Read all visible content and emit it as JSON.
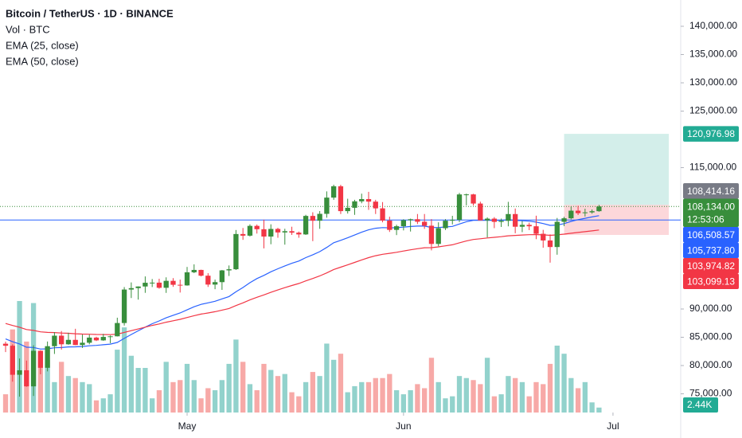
{
  "chart_data": {
    "type": "candlestick",
    "title": "Bitcoin / TetherUS · 1D · BINANCE",
    "up_color": "#388e3c",
    "down_color": "#f23645",
    "open": [
      83860,
      83500,
      78370,
      79160,
      76320,
      82610,
      79600,
      83420,
      85280,
      83760,
      84540,
      83630,
      84030,
      84940,
      84450,
      85060,
      85170,
      87520,
      93440,
      93690,
      93980,
      94640,
      94660,
      93750,
      94980,
      94280,
      94170,
      96490,
      96910,
      95890,
      94320,
      94750,
      96830,
      97030,
      103260,
      102970,
      104700,
      104110,
      102810,
      104160,
      103540,
      103760,
      103500,
      103190,
      106460,
      105610,
      106830,
      109700,
      111710,
      107310,
      107900,
      109040,
      109440,
      108990,
      107800,
      105640,
      103990,
      104640,
      105700,
      105880,
      105430,
      104730,
      101510,
      104290,
      105620,
      105770,
      110260,
      110270,
      108650,
      105670,
      105980,
      105410,
      105590,
      106790,
      104550,
      104880,
      104630,
      103300,
      102120,
      100960,
      105420,
      106040,
      107390,
      106950,
      107090,
      107300
    ],
    "high": [
      84230,
      83750,
      81250,
      80870,
      83590,
      82700,
      84250,
      85900,
      86100,
      85800,
      86500,
      85480,
      85470,
      85100,
      85600,
      85320,
      88460,
      93880,
      94700,
      94000,
      95760,
      95300,
      95350,
      95600,
      95460,
      95200,
      97440,
      97900,
      96950,
      96330,
      95200,
      96900,
      97700,
      103970,
      104330,
      104970,
      104940,
      105800,
      104980,
      104360,
      104190,
      104550,
      103700,
      106660,
      107110,
      107320,
      110800,
      111980,
      111960,
      109500,
      109310,
      110400,
      110720,
      109310,
      108910,
      106320,
      104900,
      105880,
      105980,
      106800,
      106800,
      105900,
      105330,
      105900,
      106480,
      110530,
      110400,
      110370,
      108980,
      106200,
      106250,
      105990,
      108950,
      107770,
      105570,
      105260,
      106500,
      104000,
      103200,
      106100,
      106300,
      108130,
      108250,
      107740,
      107600,
      108414
    ],
    "low": [
      82380,
      77150,
      74500,
      76240,
      74620,
      78460,
      78970,
      82050,
      82820,
      83680,
      83600,
      83110,
      83760,
      84330,
      84380,
      83950,
      85140,
      87070,
      91940,
      91660,
      92860,
      93880,
      93590,
      92850,
      93920,
      92910,
      94120,
      96340,
      95760,
      93900,
      93500,
      93380,
      95840,
      96900,
      102230,
      102820,
      103340,
      100720,
      101450,
      102600,
      101380,
      103100,
      102600,
      103100,
      102000,
      104180,
      106150,
      109310,
      106800,
      106880,
      106650,
      108700,
      107530,
      106800,
      105330,
      103630,
      103070,
      103900,
      103700,
      105030,
      104170,
      100370,
      101100,
      103970,
      104960,
      105360,
      108330,
      108300,
      105670,
      102660,
      104300,
      104510,
      104620,
      103400,
      103590,
      103950,
      102350,
      100840,
      98200,
      99600,
      104650,
      105850,
      106620,
      106350,
      106860,
      107200
    ],
    "close": [
      83500,
      78370,
      79160,
      76320,
      82610,
      79600,
      83420,
      85280,
      83760,
      84540,
      83630,
      84030,
      84940,
      84450,
      85060,
      85170,
      87520,
      93440,
      93690,
      93980,
      94640,
      94660,
      93750,
      94980,
      94280,
      94170,
      96490,
      96910,
      95890,
      94320,
      94750,
      96830,
      97030,
      103260,
      102970,
      104700,
      104110,
      102810,
      104160,
      103540,
      103760,
      103500,
      103190,
      106460,
      105610,
      106830,
      109700,
      111710,
      107310,
      107900,
      109040,
      109440,
      108990,
      107800,
      105640,
      103990,
      104640,
      105700,
      105880,
      105430,
      104730,
      101510,
      104290,
      105620,
      105770,
      110260,
      110270,
      108650,
      105670,
      105980,
      105410,
      105590,
      106790,
      104550,
      104880,
      104630,
      103300,
      102120,
      100960,
      105420,
      106040,
      107390,
      106950,
      107090,
      107300,
      108134
    ],
    "volume": {
      "name": "Vol · BTC",
      "up_color": "#92d2cc",
      "down_color": "#f7a9a7",
      "vlim": [
        0,
        55
      ],
      "values": [
        9,
        41,
        55,
        35,
        54,
        30,
        26,
        15,
        25,
        18,
        17,
        15,
        14,
        6,
        7,
        9,
        31,
        42,
        28,
        22,
        22,
        7,
        11,
        25,
        15,
        16,
        24,
        16,
        7,
        12,
        11,
        16,
        24,
        36,
        25,
        14,
        11,
        24,
        21,
        18,
        19,
        10,
        8,
        15,
        20,
        18,
        34,
        26,
        29,
        10,
        13,
        15,
        15,
        17,
        17,
        19,
        11,
        9,
        11,
        14,
        12,
        27,
        15,
        7,
        8,
        18,
        17,
        16,
        14,
        27,
        8,
        9,
        18,
        17,
        15,
        8,
        15,
        14,
        24,
        33,
        29,
        17,
        12,
        15,
        5,
        2.44
      ],
      "current": {
        "value": 2.44,
        "label": "2.44K",
        "color": "#22ab94"
      }
    },
    "lines": [
      {
        "name": "EMA (25, close)",
        "color": "#2962ff",
        "values": [
          84700,
          84213,
          83824,
          83246,
          83197,
          82920,
          82958,
          83137,
          83185,
          83289,
          83315,
          83370,
          83491,
          83565,
          83680,
          83795,
          84082,
          84803,
          85487,
          86141,
          86795,
          87401,
          87890,
          88436,
          88886,
          89293,
          89847,
          90391,
          90814,
          91084,
          91366,
          91787,
          92191,
          93043,
          93807,
          94646,
          95375,
          95947,
          96579,
          97115,
          97627,
          98079,
          98473,
          99088,
          99590,
          100147,
          100883,
          101717,
          102148,
          102591,
          103088,
          103577,
          103994,
          104287,
          104391,
          104360,
          104382,
          104483,
          104591,
          104656,
          104662,
          104419,
          104409,
          104502,
          104600,
          105036,
          105439,
          105686,
          105685,
          105708,
          105685,
          105678,
          105764,
          105671,
          105610,
          105535,
          105363,
          105113,
          104793,
          104841,
          105100,
          105500,
          105800,
          106050,
          106280,
          106508.57
        ],
        "last_label": {
          "value": 106508.57,
          "label": "106,508.57"
        }
      },
      {
        "name": "EMA (50, close)",
        "color": "#f23645",
        "values": [
          87439,
          87083,
          86772,
          86362,
          86215,
          85956,
          85857,
          85834,
          85753,
          85705,
          85624,
          85562,
          85538,
          85495,
          85478,
          85466,
          85547,
          85856,
          86163,
          86469,
          86789,
          87098,
          87359,
          87658,
          87918,
          88163,
          88489,
          88819,
          89096,
          89301,
          89515,
          89802,
          90085,
          90601,
          91086,
          91601,
          92072,
          92493,
          92950,
          93365,
          93772,
          94153,
          94507,
          94976,
          95393,
          95841,
          96384,
          96985,
          97390,
          97802,
          98243,
          98682,
          99086,
          99428,
          99672,
          99841,
          100029,
          100251,
          100472,
          100666,
          100825,
          100852,
          100987,
          101169,
          101349,
          101698,
          102034,
          102293,
          102425,
          102564,
          102676,
          102790,
          102947,
          103010,
          103083,
          103144,
          103150,
          103110,
          103026,
          103120,
          103234,
          103397,
          103536,
          103675,
          103817,
          103974.82
        ],
        "last_label": {
          "value": 103974.82,
          "label": "103,974.82"
        }
      }
    ],
    "last_price": {
      "value": 108134,
      "label": "108,134.00",
      "countdown": "12:53:06",
      "color": "#388e3c"
    },
    "horizontal_line": {
      "value": 105737.8,
      "label": "105,737.80",
      "color": "#2962ff"
    },
    "position": {
      "start": 80,
      "end": 95,
      "target": {
        "value": 120976.98,
        "label": "120,976.98",
        "color": "#22ab94"
      },
      "entry": {
        "value": 108414.16,
        "label": "108,414.16",
        "color": "#787b86"
      },
      "stop": {
        "value": 103099.13,
        "label": "103,099.13",
        "color": "#f23645"
      }
    },
    "xlim": [
      -0.8,
      96.7
    ],
    "xticks": [
      {
        "value": 26,
        "label": "May"
      },
      {
        "value": 57,
        "label": "Jun"
      },
      {
        "value": 87,
        "label": "Jul"
      }
    ],
    "ylim": [
      71690,
      144650
    ],
    "yticks": [
      {
        "value": 140000,
        "label": "140,000.00"
      },
      {
        "value": 135000,
        "label": "135,000.00"
      },
      {
        "value": 130000,
        "label": "130,000.00"
      },
      {
        "value": 125000,
        "label": "125,000.00"
      },
      {
        "value": 115000,
        "label": "115,000.00"
      },
      {
        "value": 90000,
        "label": "90,000.00"
      },
      {
        "value": 85000,
        "label": "85,000.00"
      },
      {
        "value": 80000,
        "label": "80,000.00"
      },
      {
        "value": 75000,
        "label": "75,000.00"
      }
    ]
  }
}
